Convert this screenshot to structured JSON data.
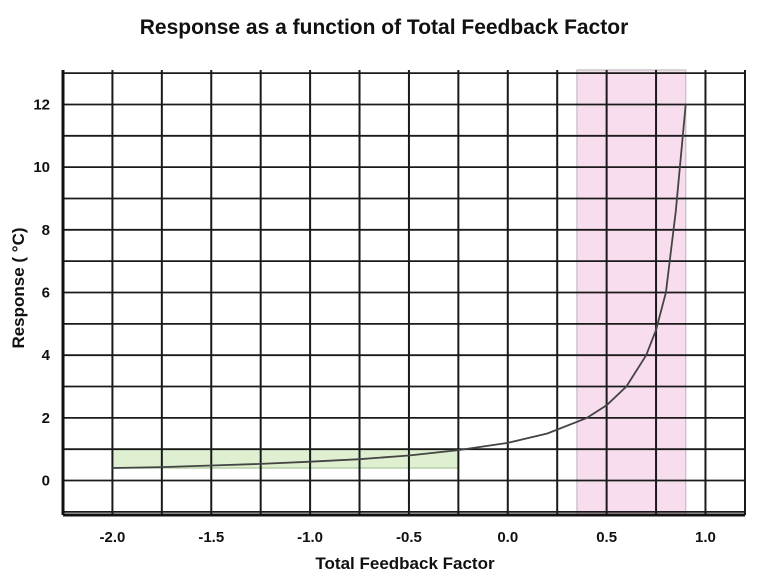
{
  "chart_data": {
    "type": "line",
    "title": "Response as a function of Total Feedback Factor",
    "xlabel": "Total Feedback Factor",
    "ylabel": "Response ( °C)",
    "xlim": [
      -2.25,
      1.2
    ],
    "ylim": [
      -1.1,
      13.1
    ],
    "x_ticks": [
      -2.0,
      -1.5,
      -1.0,
      -0.5,
      0.0,
      0.5,
      1.0
    ],
    "x_tick_labels": [
      "-2.0",
      "-1.5",
      "-1.0",
      "-0.5",
      "0.0",
      "0.5",
      "1.0"
    ],
    "x_gridlines": [
      -2.25,
      -2.0,
      -1.75,
      -1.5,
      -1.25,
      -1.0,
      -0.75,
      -0.5,
      -0.25,
      0.0,
      0.25,
      0.5,
      0.75,
      1.0,
      1.2
    ],
    "y_ticks": [
      0,
      2,
      4,
      6,
      8,
      10,
      12
    ],
    "y_tick_labels": [
      "0",
      "2",
      "4",
      "6",
      "8",
      "10",
      "12"
    ],
    "y_gridlines": [
      -1,
      0,
      1,
      2,
      3,
      4,
      5,
      6,
      7,
      8,
      9,
      10,
      11,
      12,
      13
    ],
    "grid": true,
    "series": [
      {
        "color": "#444444",
        "x": [
          -2.0,
          -1.75,
          -1.5,
          -1.25,
          -1.0,
          -0.75,
          -0.5,
          -0.25,
          0.0,
          0.2,
          0.4,
          0.5,
          0.6,
          0.7,
          0.75,
          0.8,
          0.85,
          0.9
        ],
        "y": [
          0.4,
          0.43,
          0.48,
          0.53,
          0.6,
          0.68,
          0.8,
          0.97,
          1.2,
          1.5,
          2.0,
          2.4,
          3.0,
          4.0,
          4.8,
          6.0,
          8.6,
          12.0
        ]
      }
    ],
    "shaded_regions": [
      {
        "x": [
          -2.0,
          -0.25
        ],
        "y": [
          0.4,
          1.0
        ],
        "color": "#dff0d0"
      },
      {
        "x": [
          0.35,
          0.9
        ],
        "y": [
          -1.1,
          13.1
        ],
        "color": "#f8ddee"
      }
    ]
  }
}
